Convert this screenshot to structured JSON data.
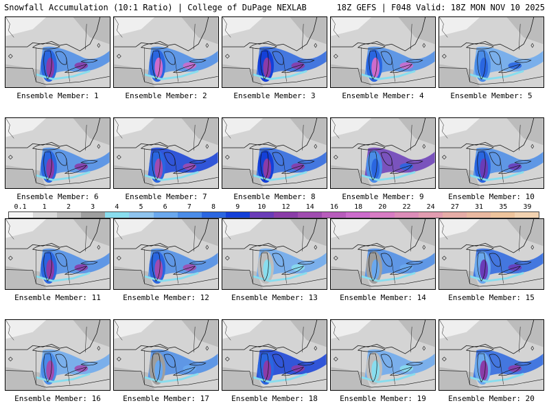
{
  "header": {
    "title": "Snowfall Accumulation (10:1 Ratio) | College of DuPage NEXLAB",
    "run_info": "18Z GEFS | F048 Valid: 18Z MON NOV 10 2025"
  },
  "colorbar": {
    "ticks": [
      "0.1",
      "1",
      "2",
      "3",
      "4",
      "5",
      "6",
      "7",
      "8",
      "9",
      "10",
      "12",
      "14",
      "16",
      "18",
      "20",
      "22",
      "24",
      "27",
      "31",
      "35",
      "39"
    ],
    "colors": [
      "#f4f4f4",
      "#d9d9d9",
      "#bdbdbd",
      "#9e9e9e",
      "#88ddee",
      "#8ec4ef",
      "#6aa8ee",
      "#4a8ce8",
      "#2a66e0",
      "#1440d8",
      "#6a3cb8",
      "#8a3ca8",
      "#a04cb0",
      "#b85cbc",
      "#cc6ccc",
      "#d87cc4",
      "#dc8cb8",
      "#e29cb0",
      "#e6aca6",
      "#eab8a0",
      "#eec49c",
      "#f2d2b0"
    ]
  },
  "panels": [
    {
      "label": "Ensemble Member: 1",
      "lake": "#2a66e0",
      "core": "#8a3ca8",
      "band": "#4a8ce8"
    },
    {
      "label": "Ensemble Member: 2",
      "lake": "#2a66e0",
      "core": "#cc6ccc",
      "band": "#4a8ce8"
    },
    {
      "label": "Ensemble Member: 3",
      "lake": "#1440d8",
      "core": "#8a3ca8",
      "band": "#2a66e0"
    },
    {
      "label": "Ensemble Member: 4",
      "lake": "#2a66e0",
      "core": "#cc6ccc",
      "band": "#4a8ce8"
    },
    {
      "label": "Ensemble Member: 5",
      "lake": "#4a8ce8",
      "core": "#2a66e0",
      "band": "#6aa8ee"
    },
    {
      "label": "Ensemble Member: 6",
      "lake": "#2a66e0",
      "core": "#8a3ca8",
      "band": "#4a8ce8"
    },
    {
      "label": "Ensemble Member: 7",
      "lake": "#2a66e0",
      "core": "#a04cb0",
      "band": "#1440d8"
    },
    {
      "label": "Ensemble Member: 8",
      "lake": "#1440d8",
      "core": "#8a3ca8",
      "band": "#2a66e0"
    },
    {
      "label": "Ensemble Member: 9",
      "lake": "#4a8ce8",
      "core": "#2a66e0",
      "band": "#6a3cb8"
    },
    {
      "label": "Ensemble Member: 10",
      "lake": "#2a66e0",
      "core": "#6a3cb8",
      "band": "#4a8ce8"
    },
    {
      "label": "Ensemble Member: 11",
      "lake": "#2a66e0",
      "core": "#8a3ca8",
      "band": "#4a8ce8"
    },
    {
      "label": "Ensemble Member: 12",
      "lake": "#2a66e0",
      "core": "#a04cb0",
      "band": "#4a8ce8"
    },
    {
      "label": "Ensemble Member: 13",
      "lake": "#bdbdbd",
      "core": "#88ddee",
      "band": "#6aa8ee"
    },
    {
      "label": "Ensemble Member: 14",
      "lake": "#9e9e9e",
      "core": "#6aa8ee",
      "band": "#4a8ce8"
    },
    {
      "label": "Ensemble Member: 15",
      "lake": "#6aa8ee",
      "core": "#6a3cb8",
      "band": "#2a66e0"
    },
    {
      "label": "Ensemble Member: 16",
      "lake": "#4a8ce8",
      "core": "#a04cb0",
      "band": "#6aa8ee"
    },
    {
      "label": "Ensemble Member: 17",
      "lake": "#9e9e9e",
      "core": "#6aa8ee",
      "band": "#4a8ce8"
    },
    {
      "label": "Ensemble Member: 18",
      "lake": "#2a66e0",
      "core": "#8a3ca8",
      "band": "#1440d8"
    },
    {
      "label": "Ensemble Member: 19",
      "lake": "#bdbdbd",
      "core": "#88ddee",
      "band": "#6aa8ee"
    },
    {
      "label": "Ensemble Member: 20",
      "lake": "#6aa8ee",
      "core": "#8a3ca8",
      "band": "#2a66e0"
    }
  ]
}
